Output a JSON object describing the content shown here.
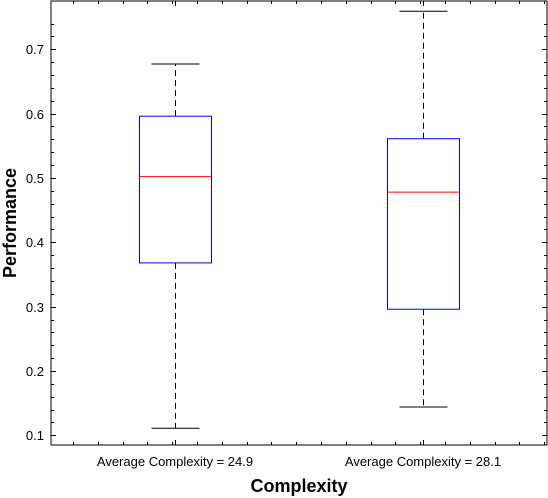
{
  "chart_data": {
    "type": "box",
    "title": "",
    "xlabel": "Complexity",
    "ylabel": "Performance",
    "ylim": [
      0.085,
      0.775
    ],
    "yticks": [
      0.1,
      0.2,
      0.3,
      0.4,
      0.5,
      0.6,
      0.7
    ],
    "ytick_labels": [
      "0.1",
      "0.2",
      "0.3",
      "0.4",
      "0.5",
      "0.6",
      "0.7"
    ],
    "grid": false,
    "categories": [
      "Average Complexity = 24.9",
      "Average Complexity = 28.1"
    ],
    "boxes": [
      {
        "whisker_low": 0.111,
        "q1": 0.368,
        "median": 0.502,
        "q3": 0.596,
        "whisker_high": 0.677
      },
      {
        "whisker_low": 0.144,
        "q1": 0.296,
        "median": 0.478,
        "q3": 0.561,
        "whisker_high": 0.759
      }
    ],
    "colors": {
      "box": "#0000ff",
      "median": "#ff0000",
      "whisker": "#000000"
    }
  }
}
